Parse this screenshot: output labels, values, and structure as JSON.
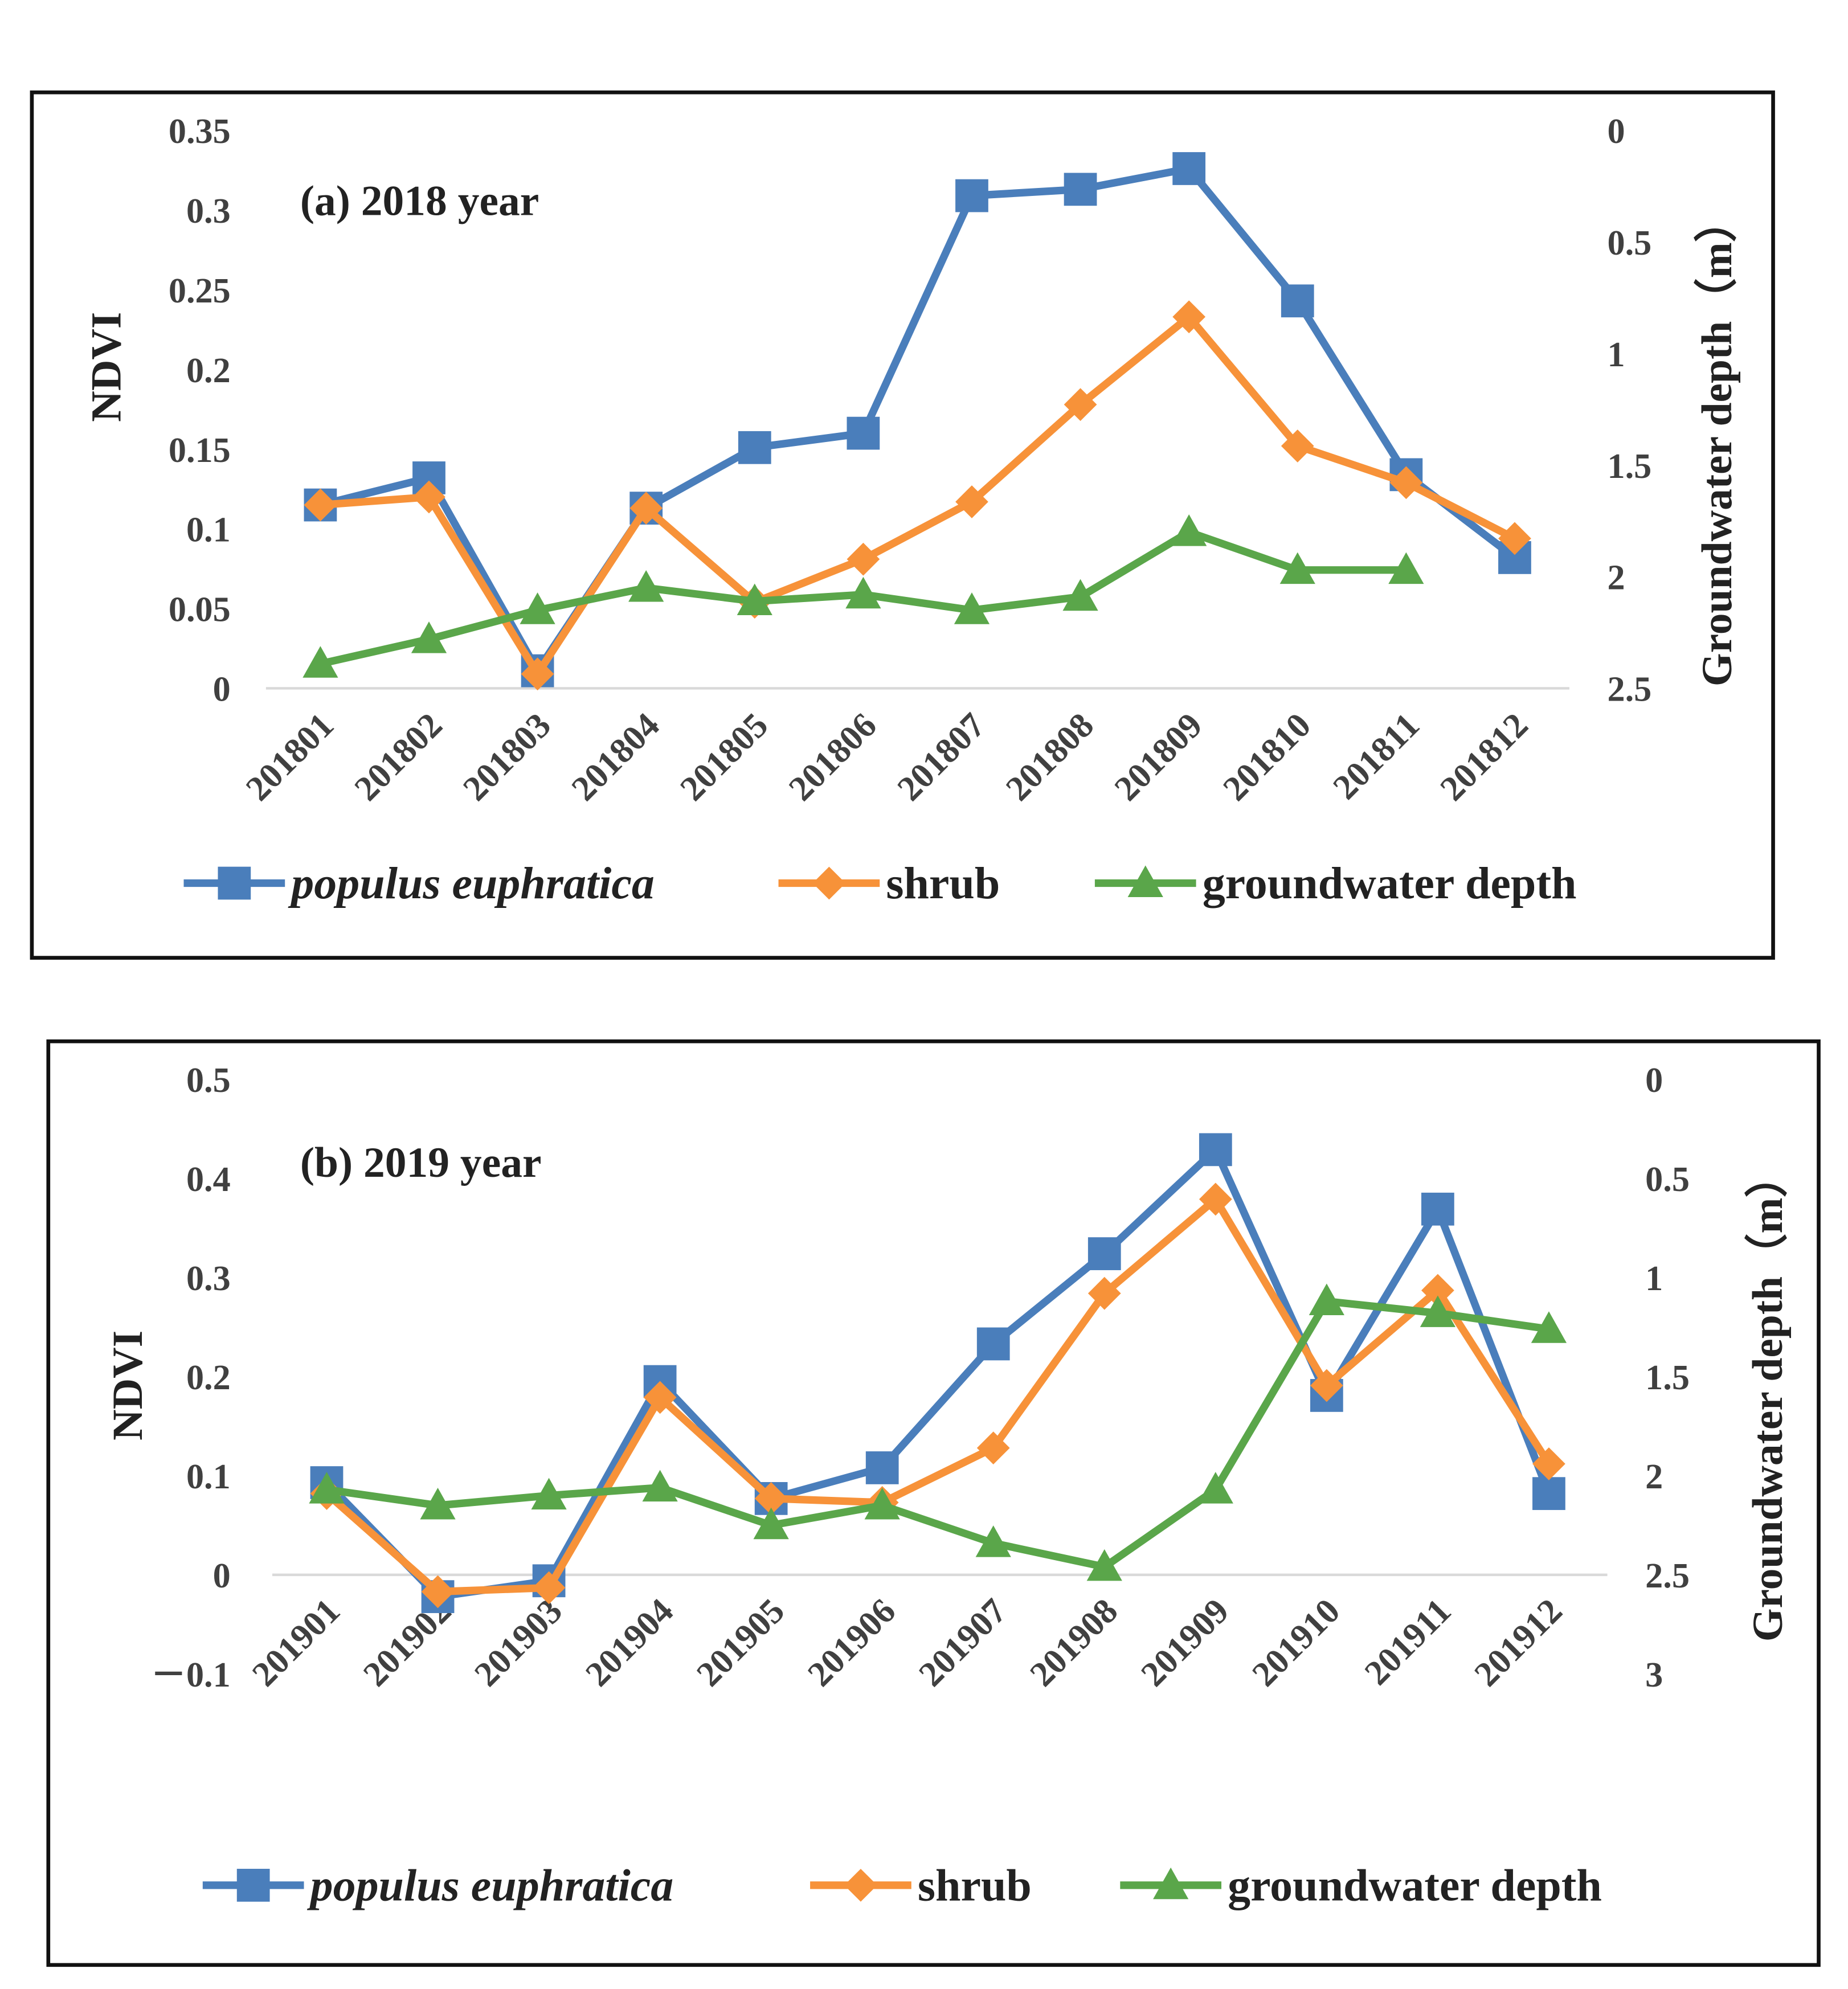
{
  "colors": {
    "populus": "#4a7ebb",
    "shrub": "#f79239",
    "groundwater": "#5aa64a",
    "axis": "#d9d9d9"
  },
  "chart_data": [
    {
      "type": "line",
      "title": "(a) 2018 year",
      "xlabel": "",
      "ylabel": "NDVI",
      "y2label": "Groundwater depth（m）",
      "categories": [
        "201801",
        "201802",
        "201803",
        "201804",
        "201805",
        "201806",
        "201807",
        "201808",
        "201809",
        "201810",
        "201811",
        "201812"
      ],
      "ylim": [
        0,
        0.35
      ],
      "yticks": [
        "0",
        "0.05",
        "0.1",
        "0.15",
        "0.2",
        "0.25",
        "0.3",
        "0.35"
      ],
      "y2lim": [
        2.5,
        0
      ],
      "y2ticks": [
        "0",
        "0.5",
        "1",
        "1.5",
        "2",
        "2.5"
      ],
      "legend_position": "bottom",
      "series": [
        {
          "name": "populus euphratica",
          "axis": "left",
          "marker": "square",
          "values": [
            0.115,
            0.132,
            0.011,
            0.113,
            0.151,
            0.16,
            0.309,
            0.313,
            0.326,
            0.243,
            0.134,
            0.082
          ]
        },
        {
          "name": "shrub",
          "axis": "left",
          "marker": "diamond",
          "values": [
            0.115,
            0.12,
            0.009,
            0.113,
            0.054,
            0.081,
            0.117,
            0.178,
            0.233,
            0.152,
            0.129,
            0.094
          ]
        },
        {
          "name": "groundwater depth",
          "axis": "right",
          "marker": "triangle",
          "values": [
            2.39,
            2.28,
            2.15,
            2.05,
            2.11,
            2.08,
            2.15,
            2.09,
            1.8,
            1.97,
            1.97,
            null
          ]
        }
      ]
    },
    {
      "type": "line",
      "title": "(b) 2019 year",
      "xlabel": "",
      "ylabel": "NDVI",
      "y2label": "Groundwater depth（m）",
      "categories": [
        "201901",
        "201902",
        "201903",
        "201904",
        "201905",
        "201906",
        "201907",
        "201908",
        "201909",
        "201910",
        "201911",
        "201912"
      ],
      "ylim": [
        -0.1,
        0.5
      ],
      "yticks": [
        "－0.1",
        "0",
        "0.1",
        "0.2",
        "0.3",
        "0.4",
        "0.5"
      ],
      "y2lim": [
        3,
        0
      ],
      "y2ticks": [
        "0",
        "0.5",
        "1",
        "1.5",
        "2",
        "2.5",
        "3"
      ],
      "legend_position": "bottom",
      "series": [
        {
          "name": "populus euphratica",
          "axis": "left",
          "marker": "square",
          "values": [
            0.093,
            -0.022,
            -0.006,
            0.195,
            0.077,
            0.108,
            0.233,
            0.324,
            0.429,
            0.181,
            0.369,
            0.082
          ]
        },
        {
          "name": "shrub",
          "axis": "left",
          "marker": "diamond",
          "values": [
            0.082,
            -0.017,
            -0.013,
            0.179,
            0.077,
            0.073,
            0.128,
            0.284,
            0.379,
            0.191,
            0.287,
            0.112
          ]
        },
        {
          "name": "groundwater depth",
          "axis": "right",
          "marker": "triangle",
          "values": [
            2.07,
            2.15,
            2.1,
            2.06,
            2.25,
            2.15,
            2.34,
            2.46,
            2.07,
            1.12,
            1.18,
            1.26
          ]
        }
      ]
    }
  ]
}
